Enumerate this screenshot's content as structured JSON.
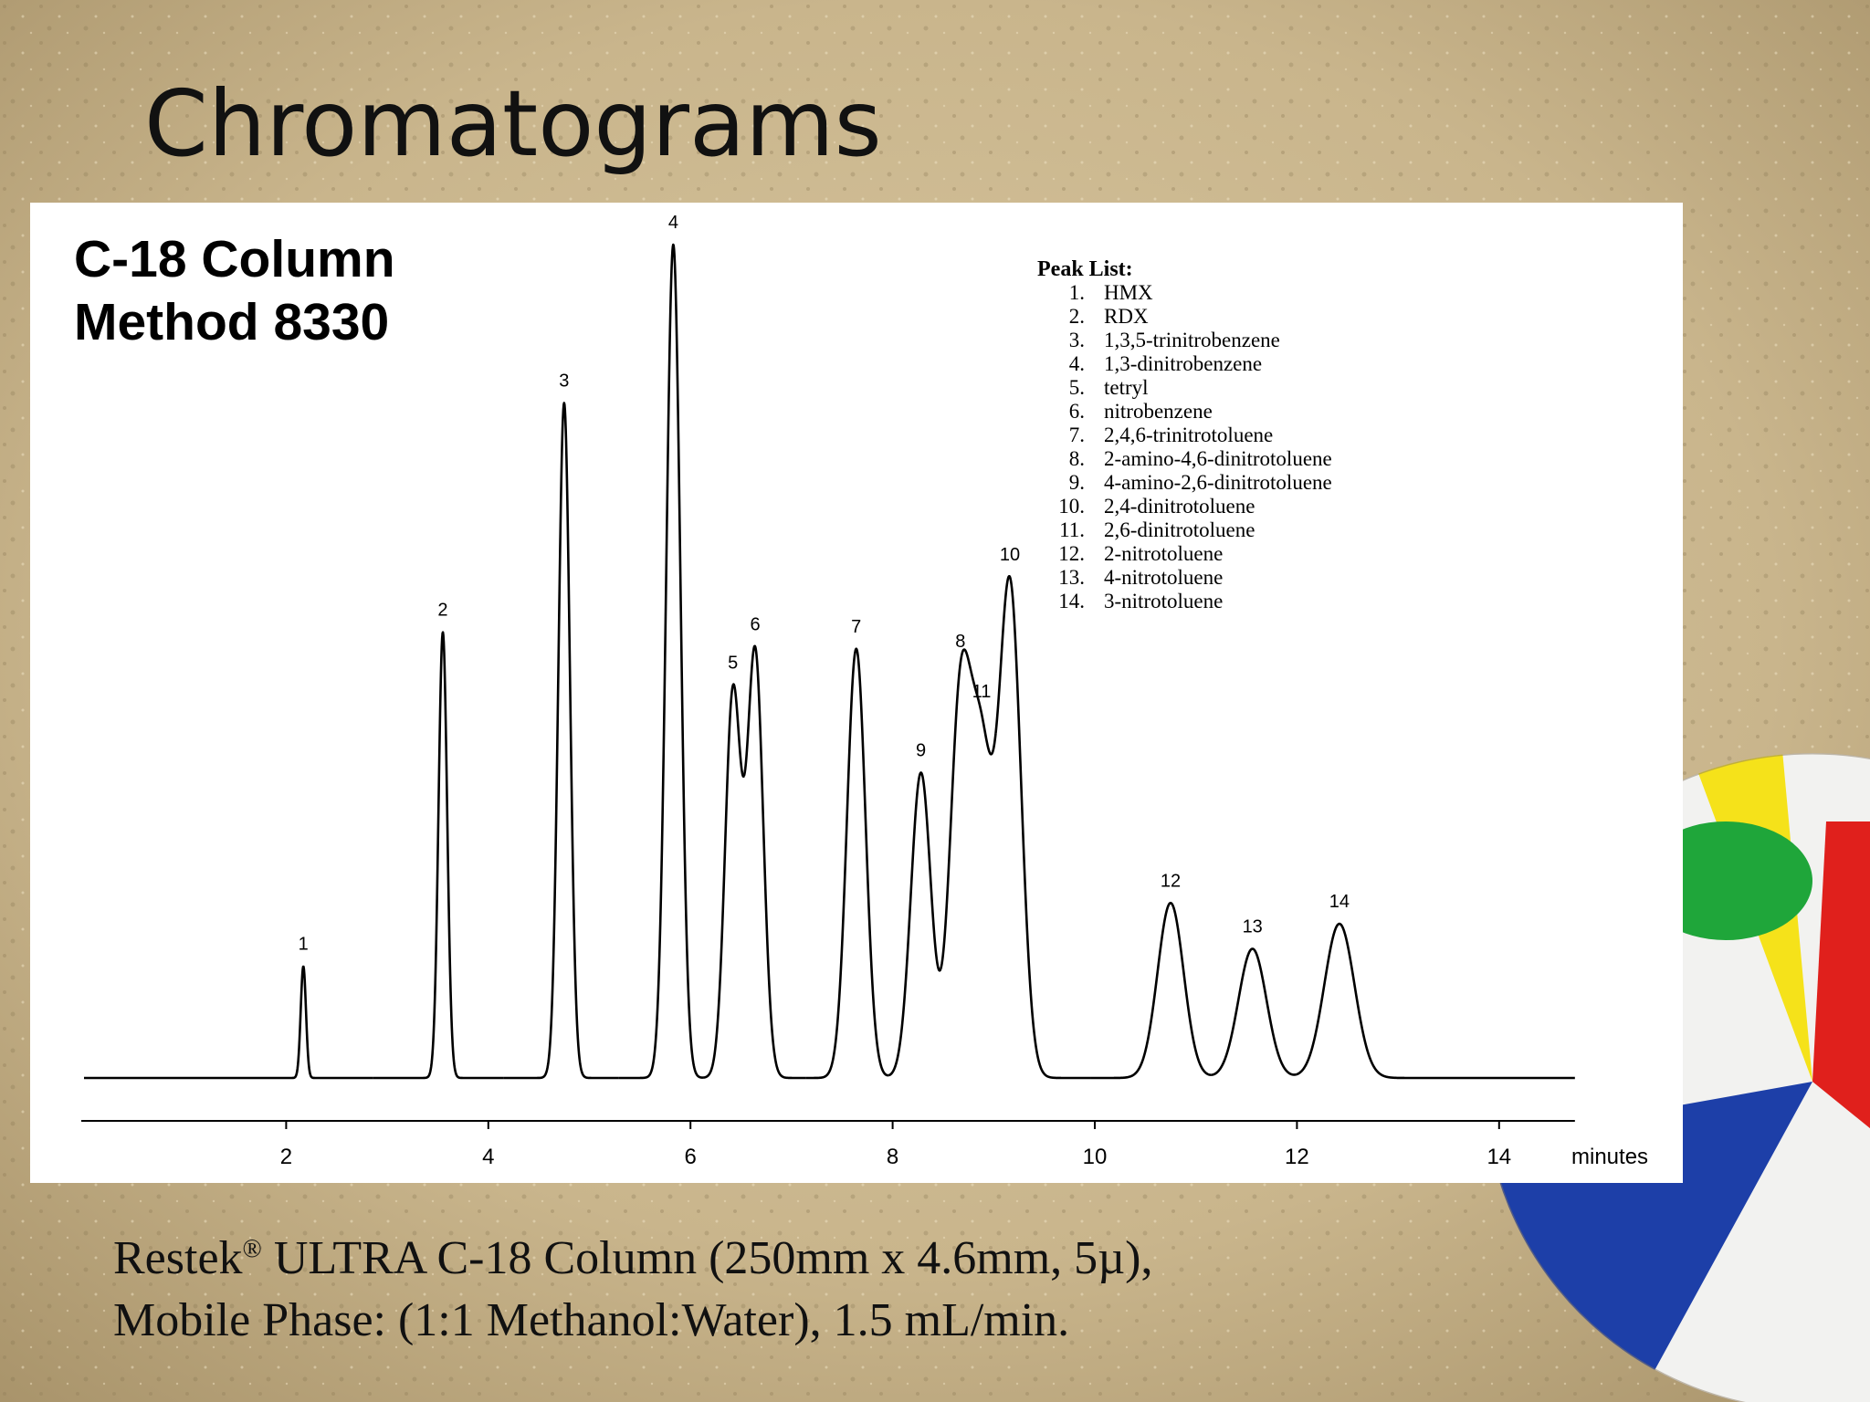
{
  "slide_title": "Chromatograms",
  "chart_data": {
    "type": "chromatogram",
    "heading": [
      "C-18 Column",
      "Method 8330"
    ],
    "labels": [
      "1",
      "2",
      "3",
      "4",
      "5",
      "6",
      "7",
      "8",
      "9",
      "10",
      "11",
      "12",
      "13",
      "14"
    ],
    "x": [
      2.17,
      3.55,
      4.75,
      5.83,
      6.42,
      6.64,
      7.64,
      8.67,
      8.28,
      9.16,
      8.88,
      10.75,
      11.56,
      12.42
    ],
    "values": [
      13.4,
      53.5,
      81,
      100,
      46,
      51,
      51.5,
      44.6,
      36.6,
      59,
      35.6,
      21,
      15.5,
      18.5
    ],
    "color": "#000000",
    "xlim": [
      0,
      14.75
    ],
    "ylim": [
      0,
      100
    ],
    "xticks": [
      2,
      4,
      6,
      8,
      10,
      12,
      14
    ],
    "xlabel": "minutes",
    "peak_list": {
      "title": "Peak List:",
      "items": [
        [
          "1.",
          "HMX"
        ],
        [
          "2.",
          "RDX"
        ],
        [
          "3.",
          "1,3,5-trinitrobenzene"
        ],
        [
          "4.",
          "1,3-dinitrobenzene"
        ],
        [
          "5.",
          "tetryl"
        ],
        [
          "6.",
          "nitrobenzene"
        ],
        [
          "7.",
          "2,4,6-trinitrotoluene"
        ],
        [
          "8.",
          "2-amino-4,6-dinitrotoluene"
        ],
        [
          "9.",
          "4-amino-2,6-dinitrotoluene"
        ],
        [
          "10.",
          "2,4-dinitrotoluene"
        ],
        [
          "11.",
          "2,6-dinitrotoluene"
        ],
        [
          "12.",
          "2-nitrotoluene"
        ],
        [
          "13.",
          "4-nitrotoluene"
        ],
        [
          "14.",
          "3-nitrotoluene"
        ]
      ]
    }
  },
  "caption": {
    "line1": [
      "Restek",
      "®",
      " ULTRA C-18 Column  (250mm x 4.6mm, 5µ),"
    ],
    "line2": "Mobile Phase: (1:1 Methanol:Water), 1.5 mL/min."
  }
}
